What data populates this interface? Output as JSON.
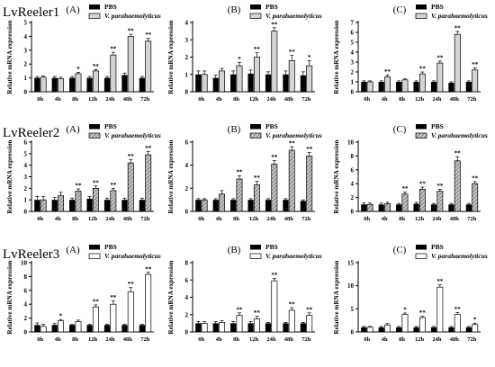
{
  "row_labels": [
    "LvReeler1",
    "LvReeler2",
    "LvReeler3"
  ],
  "legend": {
    "pbs": "PBS",
    "vp": "V. parahaemolyticus"
  },
  "colors": {
    "pbs": "#000000",
    "vp_gray": "#d4d4d4",
    "vp_hatch": "#8a8a8a",
    "vp_white": "#ffffff"
  },
  "chart_data": [
    {
      "type": "bar",
      "panel": "(A)",
      "row": 0,
      "col": 0,
      "style": "gray",
      "ylabel": "Relative mRNA expression",
      "categories": [
        "0h",
        "4h",
        "8h",
        "12h",
        "24h",
        "48h",
        "72h"
      ],
      "ylim": [
        0,
        5
      ],
      "ticks": [
        0,
        1,
        2,
        3,
        4,
        5
      ],
      "series": [
        {
          "name": "PBS",
          "values": [
            1.0,
            1.0,
            1.0,
            1.0,
            1.0,
            1.2,
            1.0
          ],
          "err": [
            0.1,
            0.1,
            0.1,
            0.1,
            0.1,
            0.15,
            0.1
          ]
        },
        {
          "name": "V. parahaemolyticus",
          "values": [
            1.05,
            0.95,
            1.3,
            1.5,
            2.65,
            4.0,
            3.65
          ],
          "err": [
            0.1,
            0.1,
            0.1,
            0.1,
            0.2,
            0.15,
            0.2
          ]
        }
      ],
      "sig": [
        "",
        "",
        "*",
        "**",
        "**",
        "**",
        "**"
      ]
    },
    {
      "type": "bar",
      "panel": "(B)",
      "row": 0,
      "col": 1,
      "style": "gray",
      "ylabel": "Relative mRNA expression",
      "categories": [
        "0h",
        "4h",
        "8h",
        "12h",
        "24h",
        "48h",
        "72h"
      ],
      "ylim": [
        0,
        4
      ],
      "ticks": [
        0,
        1,
        2,
        3,
        4
      ],
      "series": [
        {
          "name": "PBS",
          "values": [
            1.0,
            0.8,
            1.0,
            1.05,
            1.0,
            1.0,
            0.95
          ],
          "err": [
            0.2,
            0.15,
            0.2,
            0.2,
            0.15,
            0.2,
            0.2
          ]
        },
        {
          "name": "V. parahaemolyticus",
          "values": [
            1.0,
            1.2,
            1.5,
            2.0,
            3.5,
            1.8,
            1.5
          ],
          "err": [
            0.2,
            0.15,
            0.2,
            0.25,
            0.2,
            0.3,
            0.3
          ]
        }
      ],
      "sig": [
        "",
        "",
        "*",
        "**",
        "**",
        "**",
        "*"
      ]
    },
    {
      "type": "bar",
      "panel": "(C)",
      "row": 0,
      "col": 2,
      "style": "gray",
      "ylabel": "Relative mRNA expression",
      "categories": [
        "0h",
        "4h",
        "8h",
        "12h",
        "24h",
        "48h",
        "72h"
      ],
      "ylim": [
        0,
        7
      ],
      "ticks": [
        0,
        1,
        2,
        3,
        4,
        5,
        6,
        7
      ],
      "series": [
        {
          "name": "PBS",
          "values": [
            1.0,
            1.0,
            1.0,
            1.0,
            1.0,
            0.9,
            1.0
          ],
          "err": [
            0.1,
            0.1,
            0.1,
            0.1,
            0.1,
            0.1,
            0.1
          ]
        },
        {
          "name": "V. parahaemolyticus",
          "values": [
            1.0,
            1.5,
            1.2,
            1.8,
            2.9,
            5.8,
            2.2
          ],
          "err": [
            0.1,
            0.2,
            0.1,
            0.2,
            0.2,
            0.3,
            0.2
          ]
        }
      ],
      "sig": [
        "",
        "**",
        "",
        "**",
        "**",
        "**",
        "**"
      ]
    },
    {
      "type": "bar",
      "panel": "(A)",
      "row": 1,
      "col": 0,
      "style": "hatch",
      "ylabel": "Relative mRNA expression",
      "categories": [
        "0h",
        "4h",
        "8h",
        "12h",
        "24h",
        "48h",
        "72h"
      ],
      "ylim": [
        0,
        6
      ],
      "ticks": [
        0,
        1,
        2,
        3,
        4,
        5,
        6
      ],
      "series": [
        {
          "name": "PBS",
          "values": [
            1.0,
            1.0,
            1.0,
            1.1,
            1.0,
            1.0,
            1.0
          ],
          "err": [
            0.3,
            0.2,
            0.15,
            0.2,
            0.15,
            0.15,
            0.15
          ]
        },
        {
          "name": "V. parahaemolyticus",
          "values": [
            1.0,
            1.35,
            1.75,
            2.0,
            1.8,
            4.2,
            4.9
          ],
          "err": [
            0.3,
            0.3,
            0.2,
            0.2,
            0.2,
            0.3,
            0.3
          ]
        }
      ],
      "sig": [
        "",
        "",
        "**",
        "**",
        "**",
        "**",
        "**"
      ]
    },
    {
      "type": "bar",
      "panel": "(B)",
      "row": 1,
      "col": 1,
      "style": "hatch",
      "ylabel": "Relative mRNA expression",
      "categories": [
        "0h",
        "4h",
        "8h",
        "12h",
        "24h",
        "48h",
        "72h"
      ],
      "ylim": [
        0,
        6
      ],
      "ticks": [
        0,
        2,
        4,
        6
      ],
      "series": [
        {
          "name": "PBS",
          "values": [
            1.0,
            1.0,
            1.0,
            1.0,
            1.0,
            1.0,
            0.9
          ],
          "err": [
            0.1,
            0.1,
            0.1,
            0.1,
            0.1,
            0.1,
            0.1
          ]
        },
        {
          "name": "V. parahaemolyticus",
          "values": [
            1.0,
            1.5,
            2.8,
            2.3,
            4.1,
            5.3,
            4.8
          ],
          "err": [
            0.1,
            0.3,
            0.3,
            0.3,
            0.3,
            0.3,
            0.3
          ]
        }
      ],
      "sig": [
        "",
        "",
        "**",
        "**",
        "**",
        "**",
        "**"
      ]
    },
    {
      "type": "bar",
      "panel": "(C)",
      "row": 1,
      "col": 2,
      "style": "hatch",
      "ylabel": "Relative mRNA expression",
      "categories": [
        "0h",
        "4h",
        "8h",
        "12h",
        "24h",
        "48h",
        "72h"
      ],
      "ylim": [
        0,
        10
      ],
      "ticks": [
        0,
        2,
        4,
        6,
        8,
        10
      ],
      "series": [
        {
          "name": "PBS",
          "values": [
            1.0,
            1.0,
            1.0,
            1.1,
            1.0,
            1.0,
            1.0
          ],
          "err": [
            0.2,
            0.2,
            0.15,
            0.2,
            0.15,
            0.15,
            0.15
          ]
        },
        {
          "name": "V. parahaemolyticus",
          "values": [
            1.0,
            1.1,
            2.5,
            3.2,
            2.9,
            7.3,
            4.0
          ],
          "err": [
            0.2,
            0.2,
            0.3,
            0.3,
            0.3,
            0.6,
            0.3
          ]
        }
      ],
      "sig": [
        "",
        "",
        "**",
        "**",
        "**",
        "**",
        "**"
      ]
    },
    {
      "type": "bar",
      "panel": "(A)",
      "row": 2,
      "col": 0,
      "style": "white",
      "ylabel": "Relative mRNA expression",
      "categories": [
        "0h",
        "4h",
        "8h",
        "12h",
        "24h",
        "48h",
        "72h"
      ],
      "ylim": [
        0,
        10
      ],
      "ticks": [
        0,
        2,
        4,
        6,
        8,
        10
      ],
      "series": [
        {
          "name": "PBS",
          "values": [
            1.0,
            1.0,
            1.0,
            1.0,
            1.0,
            1.0,
            1.0
          ],
          "err": [
            0.3,
            0.2,
            0.1,
            0.1,
            0.1,
            0.1,
            0.1
          ]
        },
        {
          "name": "V. parahaemolyticus",
          "values": [
            0.8,
            1.6,
            1.5,
            3.6,
            4.0,
            5.8,
            8.3
          ],
          "err": [
            0.3,
            0.2,
            0.2,
            0.3,
            0.5,
            0.6,
            0.3
          ]
        }
      ],
      "sig": [
        "",
        "*",
        "",
        "**",
        "**",
        "**",
        "**"
      ]
    },
    {
      "type": "bar",
      "panel": "(B)",
      "row": 2,
      "col": 1,
      "style": "white",
      "ylabel": "Relative mRNA expression",
      "categories": [
        "0h",
        "4h",
        "8h",
        "12h",
        "24h",
        "48h",
        "72h"
      ],
      "ylim": [
        0,
        8
      ],
      "ticks": [
        0,
        2,
        4,
        6,
        8
      ],
      "series": [
        {
          "name": "PBS",
          "values": [
            1.0,
            1.0,
            1.0,
            1.0,
            1.0,
            1.0,
            1.0
          ],
          "err": [
            0.2,
            0.2,
            0.2,
            0.2,
            0.1,
            0.1,
            0.1
          ]
        },
        {
          "name": "V. parahaemolyticus",
          "values": [
            1.0,
            1.1,
            1.9,
            1.5,
            5.9,
            2.5,
            1.9
          ],
          "err": [
            0.2,
            0.2,
            0.3,
            0.3,
            0.3,
            0.3,
            0.3
          ]
        }
      ],
      "sig": [
        "",
        "",
        "**",
        "**",
        "**",
        "**",
        "**"
      ]
    },
    {
      "type": "bar",
      "panel": "(C)",
      "row": 2,
      "col": 2,
      "style": "white",
      "ylabel": "Relative mRNA expression",
      "categories": [
        "0h",
        "4h",
        "8h",
        "12h",
        "24h",
        "48h",
        "72h"
      ],
      "ylim": [
        0,
        15
      ],
      "ticks": [
        0,
        5,
        10,
        15
      ],
      "series": [
        {
          "name": "PBS",
          "values": [
            1.0,
            1.0,
            1.0,
            1.0,
            1.0,
            1.0,
            1.0
          ],
          "err": [
            0.2,
            0.2,
            0.2,
            0.2,
            0.2,
            0.2,
            0.2
          ]
        },
        {
          "name": "V. parahaemolyticus",
          "values": [
            1.0,
            1.5,
            3.8,
            3.1,
            9.7,
            3.8,
            1.6
          ],
          "err": [
            0.2,
            0.3,
            0.3,
            0.3,
            0.5,
            0.4,
            0.3
          ]
        }
      ],
      "sig": [
        "",
        "",
        "*",
        "**",
        "**",
        "**",
        "*"
      ]
    }
  ]
}
